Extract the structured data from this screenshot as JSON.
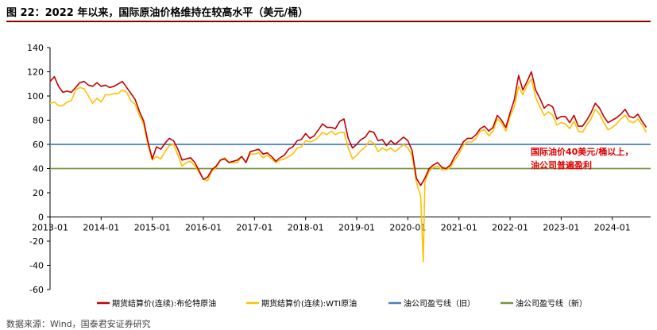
{
  "figure_title": "图 22：2022 年以来，国际原油价格维持在较高水平（美元/桶）",
  "source_note": "数据来源：Wind，国泰君安证券研究",
  "chart_data": {
    "type": "line",
    "title": "图 22：2022 年以来，国际原油价格维持在较高水平（美元/桶）",
    "xlabel": "",
    "ylabel": "",
    "x_range": [
      "2013-01",
      "2024-09"
    ],
    "ylim": [
      -60,
      140
    ],
    "y_ticks": [
      -60,
      -40,
      -20,
      0,
      20,
      40,
      60,
      80,
      100,
      120,
      140
    ],
    "x_ticks": [
      "2013-01",
      "2014-01",
      "2015-01",
      "2016-01",
      "2017-01",
      "2018-01",
      "2019-01",
      "2020-01",
      "2021-01",
      "2022-01",
      "2023-01",
      "2024-01"
    ],
    "grid": false,
    "legend_position": "bottom",
    "annotation": [
      "国际油价40美元/桶以上，",
      "油公司普遍盈利"
    ],
    "series": [
      {
        "name": "期货结算价(连续):布伦特原油",
        "color": "#c00000",
        "points": [
          [
            "2013-01",
            112
          ],
          [
            "2013-02",
            116
          ],
          [
            "2013-03",
            108
          ],
          [
            "2013-04",
            103
          ],
          [
            "2013-05",
            104
          ],
          [
            "2013-06",
            103
          ],
          [
            "2013-07",
            107
          ],
          [
            "2013-08",
            111
          ],
          [
            "2013-09",
            112
          ],
          [
            "2013-10",
            109
          ],
          [
            "2013-11",
            108
          ],
          [
            "2013-12",
            111
          ],
          [
            "2014-01",
            108
          ],
          [
            "2014-02",
            109
          ],
          [
            "2014-03",
            107
          ],
          [
            "2014-04",
            108
          ],
          [
            "2014-05",
            110
          ],
          [
            "2014-06",
            112
          ],
          [
            "2014-07",
            107
          ],
          [
            "2014-08",
            102
          ],
          [
            "2014-09",
            97
          ],
          [
            "2014-10",
            87
          ],
          [
            "2014-11",
            79
          ],
          [
            "2014-12",
            62
          ],
          [
            "2015-01",
            48
          ],
          [
            "2015-02",
            58
          ],
          [
            "2015-03",
            56
          ],
          [
            "2015-04",
            61
          ],
          [
            "2015-05",
            65
          ],
          [
            "2015-06",
            63
          ],
          [
            "2015-07",
            56
          ],
          [
            "2015-08",
            47
          ],
          [
            "2015-09",
            48
          ],
          [
            "2015-10",
            49
          ],
          [
            "2015-11",
            45
          ],
          [
            "2015-12",
            38
          ],
          [
            "2016-01",
            31
          ],
          [
            "2016-02",
            33
          ],
          [
            "2016-03",
            39
          ],
          [
            "2016-04",
            42
          ],
          [
            "2016-05",
            47
          ],
          [
            "2016-06",
            48
          ],
          [
            "2016-07",
            45
          ],
          [
            "2016-08",
            46
          ],
          [
            "2016-09",
            47
          ],
          [
            "2016-10",
            50
          ],
          [
            "2016-11",
            45
          ],
          [
            "2016-12",
            54
          ],
          [
            "2017-01",
            55
          ],
          [
            "2017-02",
            56
          ],
          [
            "2017-03",
            52
          ],
          [
            "2017-04",
            53
          ],
          [
            "2017-05",
            50
          ],
          [
            "2017-06",
            46
          ],
          [
            "2017-07",
            49
          ],
          [
            "2017-08",
            51
          ],
          [
            "2017-09",
            56
          ],
          [
            "2017-10",
            58
          ],
          [
            "2017-11",
            63
          ],
          [
            "2017-12",
            64
          ],
          [
            "2018-01",
            69
          ],
          [
            "2018-02",
            65
          ],
          [
            "2018-03",
            67
          ],
          [
            "2018-04",
            72
          ],
          [
            "2018-05",
            77
          ],
          [
            "2018-06",
            74
          ],
          [
            "2018-07",
            74
          ],
          [
            "2018-08",
            73
          ],
          [
            "2018-09",
            79
          ],
          [
            "2018-10",
            81
          ],
          [
            "2018-11",
            65
          ],
          [
            "2018-12",
            57
          ],
          [
            "2019-01",
            60
          ],
          [
            "2019-02",
            64
          ],
          [
            "2019-03",
            66
          ],
          [
            "2019-04",
            71
          ],
          [
            "2019-05",
            70
          ],
          [
            "2019-06",
            63
          ],
          [
            "2019-07",
            64
          ],
          [
            "2019-08",
            59
          ],
          [
            "2019-09",
            63
          ],
          [
            "2019-10",
            60
          ],
          [
            "2019-11",
            63
          ],
          [
            "2019-12",
            66
          ],
          [
            "2020-01",
            63
          ],
          [
            "2020-02",
            55
          ],
          [
            "2020-03",
            32
          ],
          [
            "2020-04",
            26
          ],
          [
            "2020-05",
            32
          ],
          [
            "2020-06",
            40
          ],
          [
            "2020-07",
            43
          ],
          [
            "2020-08",
            45
          ],
          [
            "2020-09",
            41
          ],
          [
            "2020-10",
            40
          ],
          [
            "2020-11",
            43
          ],
          [
            "2020-12",
            50
          ],
          [
            "2021-01",
            55
          ],
          [
            "2021-02",
            62
          ],
          [
            "2021-03",
            65
          ],
          [
            "2021-04",
            65
          ],
          [
            "2021-05",
            68
          ],
          [
            "2021-06",
            73
          ],
          [
            "2021-07",
            75
          ],
          [
            "2021-08",
            71
          ],
          [
            "2021-09",
            74
          ],
          [
            "2021-10",
            84
          ],
          [
            "2021-11",
            80
          ],
          [
            "2021-12",
            74
          ],
          [
            "2022-01",
            86
          ],
          [
            "2022-02",
            97
          ],
          [
            "2022-03",
            117
          ],
          [
            "2022-04",
            105
          ],
          [
            "2022-05",
            112
          ],
          [
            "2022-06",
            120
          ],
          [
            "2022-07",
            105
          ],
          [
            "2022-08",
            98
          ],
          [
            "2022-09",
            90
          ],
          [
            "2022-10",
            93
          ],
          [
            "2022-11",
            91
          ],
          [
            "2022-12",
            81
          ],
          [
            "2023-01",
            83
          ],
          [
            "2023-02",
            83
          ],
          [
            "2023-03",
            78
          ],
          [
            "2023-04",
            84
          ],
          [
            "2023-05",
            75
          ],
          [
            "2023-06",
            75
          ],
          [
            "2023-07",
            80
          ],
          [
            "2023-08",
            86
          ],
          [
            "2023-09",
            94
          ],
          [
            "2023-10",
            90
          ],
          [
            "2023-11",
            83
          ],
          [
            "2023-12",
            78
          ],
          [
            "2024-01",
            80
          ],
          [
            "2024-02",
            82
          ],
          [
            "2024-03",
            85
          ],
          [
            "2024-04",
            89
          ],
          [
            "2024-05",
            83
          ],
          [
            "2024-06",
            82
          ],
          [
            "2024-07",
            85
          ],
          [
            "2024-08",
            79
          ],
          [
            "2024-09",
            74
          ]
        ]
      },
      {
        "name": "期货结算价(连续):WTI原油",
        "color": "#ffc000",
        "points": [
          [
            "2013-01",
            94
          ],
          [
            "2013-02",
            95
          ],
          [
            "2013-03",
            92
          ],
          [
            "2013-04",
            92
          ],
          [
            "2013-05",
            95
          ],
          [
            "2013-06",
            96
          ],
          [
            "2013-07",
            105
          ],
          [
            "2013-08",
            107
          ],
          [
            "2013-09",
            106
          ],
          [
            "2013-10",
            100
          ],
          [
            "2013-11",
            94
          ],
          [
            "2013-12",
            98
          ],
          [
            "2014-01",
            95
          ],
          [
            "2014-02",
            101
          ],
          [
            "2014-03",
            101
          ],
          [
            "2014-04",
            102
          ],
          [
            "2014-05",
            102
          ],
          [
            "2014-06",
            105
          ],
          [
            "2014-07",
            103
          ],
          [
            "2014-08",
            96
          ],
          [
            "2014-09",
            93
          ],
          [
            "2014-10",
            84
          ],
          [
            "2014-11",
            76
          ],
          [
            "2014-12",
            59
          ],
          [
            "2015-01",
            47
          ],
          [
            "2015-02",
            50
          ],
          [
            "2015-03",
            48
          ],
          [
            "2015-04",
            54
          ],
          [
            "2015-05",
            59
          ],
          [
            "2015-06",
            60
          ],
          [
            "2015-07",
            51
          ],
          [
            "2015-08",
            42
          ],
          [
            "2015-09",
            45
          ],
          [
            "2015-10",
            46
          ],
          [
            "2015-11",
            42
          ],
          [
            "2015-12",
            37
          ],
          [
            "2016-01",
            31
          ],
          [
            "2016-02",
            30
          ],
          [
            "2016-03",
            38
          ],
          [
            "2016-04",
            41
          ],
          [
            "2016-05",
            47
          ],
          [
            "2016-06",
            49
          ],
          [
            "2016-07",
            45
          ],
          [
            "2016-08",
            45
          ],
          [
            "2016-09",
            45
          ],
          [
            "2016-10",
            50
          ],
          [
            "2016-11",
            45
          ],
          [
            "2016-12",
            52
          ],
          [
            "2017-01",
            52
          ],
          [
            "2017-02",
            53
          ],
          [
            "2017-03",
            49
          ],
          [
            "2017-04",
            51
          ],
          [
            "2017-05",
            48
          ],
          [
            "2017-06",
            45
          ],
          [
            "2017-07",
            47
          ],
          [
            "2017-08",
            48
          ],
          [
            "2017-09",
            50
          ],
          [
            "2017-10",
            52
          ],
          [
            "2017-11",
            57
          ],
          [
            "2017-12",
            58
          ],
          [
            "2018-01",
            63
          ],
          [
            "2018-02",
            62
          ],
          [
            "2018-03",
            63
          ],
          [
            "2018-04",
            66
          ],
          [
            "2018-05",
            70
          ],
          [
            "2018-06",
            68
          ],
          [
            "2018-07",
            71
          ],
          [
            "2018-08",
            68
          ],
          [
            "2018-09",
            70
          ],
          [
            "2018-10",
            70
          ],
          [
            "2018-11",
            57
          ],
          [
            "2018-12",
            48
          ],
          [
            "2019-01",
            51
          ],
          [
            "2019-02",
            55
          ],
          [
            "2019-03",
            58
          ],
          [
            "2019-04",
            63
          ],
          [
            "2019-05",
            61
          ],
          [
            "2019-06",
            54
          ],
          [
            "2019-07",
            57
          ],
          [
            "2019-08",
            55
          ],
          [
            "2019-09",
            57
          ],
          [
            "2019-10",
            54
          ],
          [
            "2019-11",
            57
          ],
          [
            "2019-12",
            60
          ],
          [
            "2020-01",
            57
          ],
          [
            "2020-02",
            51
          ],
          [
            "2020-03",
            29
          ],
          [
            "2020-04",
            17
          ],
          [
            "2020-04-20",
            -37
          ],
          [
            "2020-05",
            29
          ],
          [
            "2020-06",
            38
          ],
          [
            "2020-07",
            41
          ],
          [
            "2020-08",
            42
          ],
          [
            "2020-09",
            39
          ],
          [
            "2020-10",
            39
          ],
          [
            "2020-11",
            41
          ],
          [
            "2020-12",
            47
          ],
          [
            "2021-01",
            52
          ],
          [
            "2021-02",
            59
          ],
          [
            "2021-03",
            62
          ],
          [
            "2021-04",
            62
          ],
          [
            "2021-05",
            65
          ],
          [
            "2021-06",
            71
          ],
          [
            "2021-07",
            72
          ],
          [
            "2021-08",
            67
          ],
          [
            "2021-09",
            71
          ],
          [
            "2021-10",
            81
          ],
          [
            "2021-11",
            78
          ],
          [
            "2021-12",
            71
          ],
          [
            "2022-01",
            83
          ],
          [
            "2022-02",
            91
          ],
          [
            "2022-03",
            108
          ],
          [
            "2022-04",
            101
          ],
          [
            "2022-05",
            109
          ],
          [
            "2022-06",
            114
          ],
          [
            "2022-07",
            99
          ],
          [
            "2022-08",
            91
          ],
          [
            "2022-09",
            84
          ],
          [
            "2022-10",
            87
          ],
          [
            "2022-11",
            84
          ],
          [
            "2022-12",
            76
          ],
          [
            "2023-01",
            78
          ],
          [
            "2023-02",
            77
          ],
          [
            "2023-03",
            73
          ],
          [
            "2023-04",
            79
          ],
          [
            "2023-05",
            71
          ],
          [
            "2023-06",
            70
          ],
          [
            "2023-07",
            76
          ],
          [
            "2023-08",
            81
          ],
          [
            "2023-09",
            89
          ],
          [
            "2023-10",
            85
          ],
          [
            "2023-11",
            78
          ],
          [
            "2023-12",
            72
          ],
          [
            "2024-01",
            74
          ],
          [
            "2024-02",
            77
          ],
          [
            "2024-03",
            81
          ],
          [
            "2024-04",
            84
          ],
          [
            "2024-05",
            79
          ],
          [
            "2024-06",
            78
          ],
          [
            "2024-07",
            81
          ],
          [
            "2024-08",
            76
          ],
          [
            "2024-09",
            70
          ]
        ]
      },
      {
        "name": "油公司盈亏线（旧）",
        "color": "#4a7ebb",
        "constant": 60
      },
      {
        "name": "油公司盈亏线（新）",
        "color": "#77933c",
        "constant": 40
      }
    ]
  }
}
